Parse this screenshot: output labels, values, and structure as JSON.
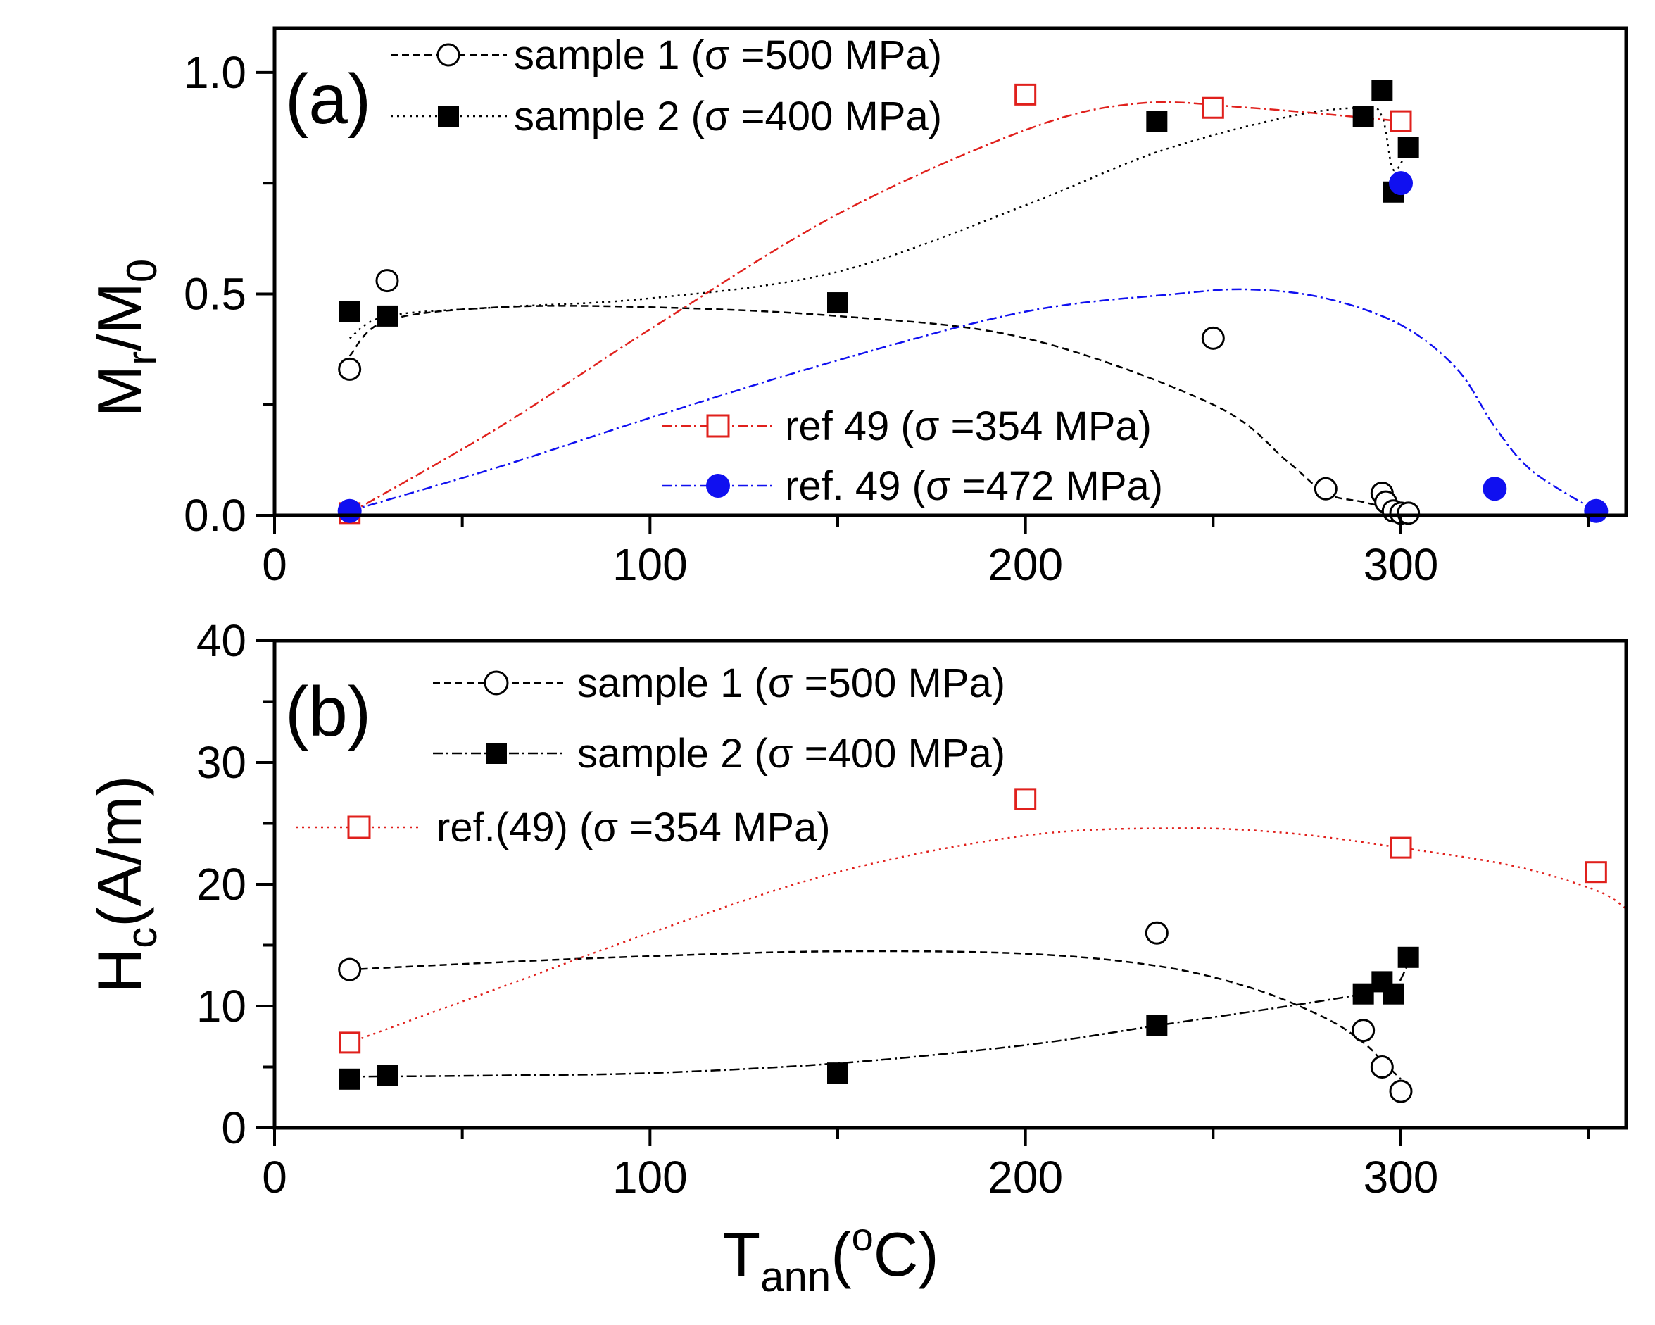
{
  "chart_data": [
    {
      "type": "scatter",
      "panel_label": "(a)",
      "ylabel": {
        "main": "M",
        "sub1": "r",
        "mid": "/M",
        "sub2": "0"
      },
      "xlim": [
        0,
        360
      ],
      "ylim": [
        0,
        1.1
      ],
      "xticks": [
        "0",
        "100",
        "200",
        "300"
      ],
      "yticks": [
        "0.0",
        "0.5",
        "1.0"
      ],
      "series": [
        {
          "name": "sample 1 (σ =500 MPa)",
          "marker": "open-circle",
          "color": "#000000",
          "line": "dashed",
          "x": [
            20,
            30,
            250,
            280,
            295,
            296,
            298,
            300,
            302
          ],
          "y": [
            0.33,
            0.53,
            0.4,
            0.06,
            0.05,
            0.03,
            0.01,
            0.005,
            0.005
          ],
          "fit_x": [
            20,
            30,
            60,
            100,
            150,
            200,
            250,
            270,
            280,
            290,
            300
          ],
          "fit_y": [
            0.36,
            0.44,
            0.47,
            0.47,
            0.45,
            0.4,
            0.25,
            0.12,
            0.05,
            0.03,
            0.01
          ]
        },
        {
          "name": "sample 2 (σ =400 MPa)",
          "marker": "filled-square",
          "color": "#000000",
          "line": "dotted",
          "x": [
            20,
            30,
            150,
            235,
            290,
            295,
            298,
            302
          ],
          "y": [
            0.46,
            0.45,
            0.48,
            0.89,
            0.9,
            0.96,
            0.73,
            0.83
          ],
          "fit_x": [
            20,
            30,
            60,
            100,
            150,
            200,
            235,
            270,
            290,
            295,
            298,
            302
          ],
          "fit_y": [
            0.4,
            0.45,
            0.47,
            0.49,
            0.55,
            0.7,
            0.82,
            0.9,
            0.92,
            0.9,
            0.78,
            0.83
          ]
        },
        {
          "name": "ref 49 (σ =354 MPa)",
          "marker": "open-square",
          "color": "#e0201c",
          "line": "dash-dot",
          "x": [
            20,
            200,
            250,
            300
          ],
          "y": [
            0.005,
            0.95,
            0.92,
            0.89
          ],
          "fit_x": [
            20,
            60,
            100,
            150,
            200,
            230,
            260,
            300
          ],
          "fit_y": [
            0.005,
            0.2,
            0.42,
            0.68,
            0.87,
            0.93,
            0.92,
            0.89
          ]
        },
        {
          "name": "ref. 49 (σ =472 MPa)",
          "marker": "filled-circle",
          "color": "#1010f0",
          "line": "dash-dot",
          "x": [
            20,
            300,
            325,
            352
          ],
          "y": [
            0.01,
            0.75,
            0.06,
            0.01
          ],
          "fit_x": [
            20,
            60,
            100,
            150,
            200,
            240,
            260,
            280,
            300,
            315,
            325,
            335,
            352
          ],
          "fit_y": [
            0.01,
            0.11,
            0.22,
            0.35,
            0.46,
            0.5,
            0.51,
            0.49,
            0.43,
            0.33,
            0.2,
            0.1,
            0.01
          ]
        }
      ]
    },
    {
      "type": "scatter",
      "panel_label": "(b)",
      "ylabel": {
        "main": "H",
        "sub1": "c",
        "mid": "(A/m)"
      },
      "xlabel": {
        "main": "T",
        "sub": "ann",
        "open": "(",
        "sup": "o",
        "close": "C)"
      },
      "xlim": [
        0,
        360
      ],
      "ylim": [
        0,
        40
      ],
      "xticks": [
        "0",
        "100",
        "200",
        "300"
      ],
      "yticks": [
        "0",
        "10",
        "20",
        "30",
        "40"
      ],
      "series": [
        {
          "name": "sample 1 (σ =500 MPa)",
          "marker": "open-circle",
          "color": "#000000",
          "line": "dashed",
          "x": [
            20,
            235,
            290,
            295,
            300
          ],
          "y": [
            13,
            16,
            8,
            5,
            3
          ],
          "fit_x": [
            20,
            60,
            100,
            150,
            200,
            235,
            260,
            280,
            290,
            295,
            300
          ],
          "fit_y": [
            13,
            13.6,
            14.1,
            14.5,
            14.3,
            13.3,
            11.5,
            9,
            7,
            5.5,
            4
          ]
        },
        {
          "name": "sample 2 (σ =400 MPa)",
          "marker": "filled-square",
          "color": "#000000",
          "line": "dash-dot",
          "x": [
            20,
            30,
            150,
            235,
            290,
            295,
            298,
            302
          ],
          "y": [
            4,
            4.3,
            4.5,
            8.4,
            11,
            12,
            11,
            14
          ],
          "fit_x": [
            20,
            60,
            100,
            150,
            200,
            235,
            270,
            290,
            295,
            298,
            302
          ],
          "fit_y": [
            4.2,
            4.3,
            4.5,
            5.3,
            6.8,
            8.4,
            10.0,
            11.0,
            11.5,
            11.2,
            13.5
          ]
        },
        {
          "name": "ref.(49) (σ =354 MPa)",
          "marker": "open-square",
          "color": "#e0201c",
          "line": "dotted",
          "x": [
            20,
            200,
            300,
            352
          ],
          "y": [
            7,
            27,
            23,
            21
          ],
          "fit_x": [
            20,
            60,
            100,
            150,
            200,
            240,
            270,
            300,
            330,
            352,
            360
          ],
          "fit_y": [
            7,
            11.5,
            16,
            21,
            24,
            24.6,
            24.2,
            23,
            21.5,
            19.5,
            18
          ]
        }
      ]
    }
  ]
}
